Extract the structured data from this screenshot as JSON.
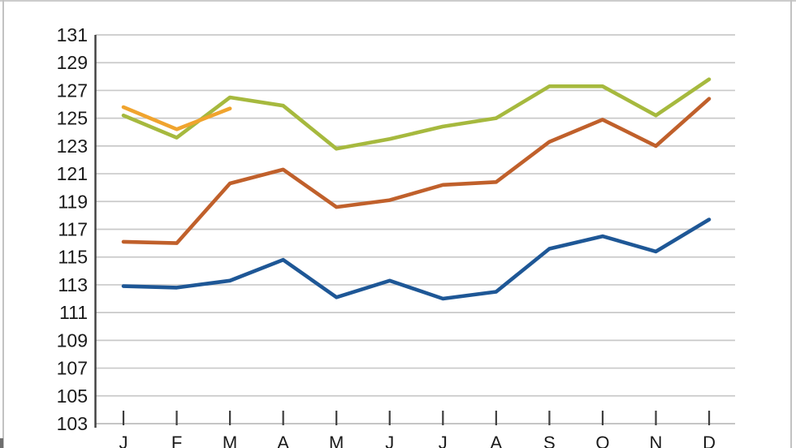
{
  "window": {
    "background": "#FFFFFF",
    "border_color": "#C2C2C2"
  },
  "chart_data": {
    "type": "line",
    "title": "",
    "legend": "none",
    "grid": "horizontal",
    "x_axis": {
      "tick_labels": [
        "J",
        "F",
        "M",
        "A",
        "M",
        "J",
        "J",
        "A",
        "S",
        "O",
        "N",
        "D"
      ]
    },
    "y_axis": {
      "min": 103,
      "max": 131,
      "step": 2,
      "tick_labels": [
        "103",
        "105",
        "107",
        "109",
        "111",
        "113",
        "115",
        "117",
        "119",
        "121",
        "123",
        "125",
        "127",
        "129",
        "131"
      ]
    },
    "series": [
      {
        "name": "dark-blue-line",
        "color": "#1E5796",
        "values": [
          112.9,
          112.8,
          113.3,
          114.8,
          112.1,
          113.3,
          112.0,
          112.5,
          115.6,
          116.5,
          115.4,
          117.7
        ]
      },
      {
        "name": "rust-orange-line",
        "color": "#C0602B",
        "values": [
          116.1,
          116.0,
          120.3,
          121.3,
          118.6,
          119.1,
          120.2,
          120.4,
          123.3,
          124.9,
          123.0,
          126.4
        ]
      },
      {
        "name": "olive-green-line",
        "color": "#A6B93E",
        "values": [
          125.2,
          123.6,
          126.5,
          125.9,
          122.8,
          123.5,
          124.4,
          125.0,
          127.3,
          127.3,
          125.2,
          127.8
        ]
      },
      {
        "name": "gold-partial-line",
        "color": "#F0A42E",
        "values": [
          125.8,
          124.2,
          125.7,
          null,
          null,
          null,
          null,
          null,
          null,
          null,
          null,
          null
        ]
      }
    ],
    "style": {
      "grid_color": "#C9C9C9",
      "baseline_color": "#BDBDBD",
      "axis_color": "#3F3F3F",
      "text_color": "#1A1A1A"
    }
  }
}
